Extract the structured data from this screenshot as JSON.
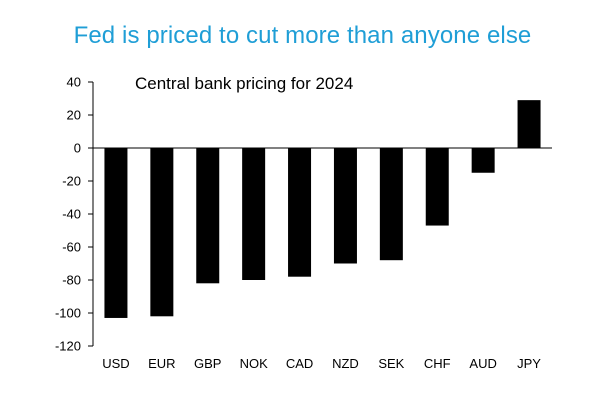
{
  "headline": "Fed is priced to cut more than anyone else",
  "colors": {
    "headline": "#1f9ed6",
    "bar": "#000000",
    "axis": "#000000"
  },
  "chart_data": {
    "type": "bar",
    "title": "Central bank pricing for 2024",
    "xlabel": "",
    "ylabel": "",
    "categories": [
      "USD",
      "EUR",
      "GBP",
      "NOK",
      "CAD",
      "NZD",
      "SEK",
      "CHF",
      "AUD",
      "JPY"
    ],
    "values": [
      -103,
      -102,
      -82,
      -80,
      -78,
      -70,
      -68,
      -47,
      -15,
      29
    ],
    "ylim": [
      -120,
      40
    ],
    "yticks": [
      40,
      20,
      0,
      -20,
      -40,
      -60,
      -80,
      -100,
      -120
    ],
    "grid": false,
    "legend": "none"
  }
}
